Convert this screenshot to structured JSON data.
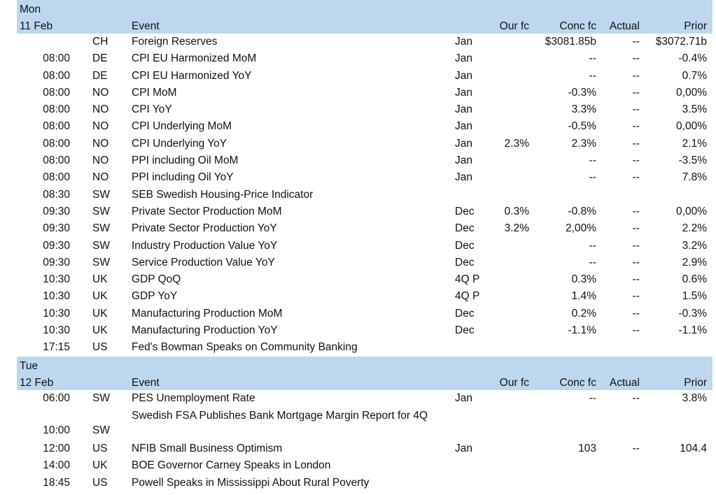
{
  "columns": {
    "event": "Event",
    "our_fc": "Our fc",
    "conc_fc": "Conc fc",
    "actual": "Actual",
    "prior": "Prior"
  },
  "days": [
    {
      "day": "Mon",
      "date": "11 Feb",
      "rows": [
        {
          "time": "",
          "country": "CH",
          "event": "Foreign Reserves",
          "period": "Jan",
          "our_fc": "",
          "conc_fc": "$3081.85b",
          "actual": "--",
          "prior": "$3072.71b"
        },
        {
          "time": "08:00",
          "country": "DE",
          "event": "CPI EU Harmonized MoM",
          "period": "Jan",
          "our_fc": "",
          "conc_fc": "--",
          "actual": "--",
          "prior": "-0.4%"
        },
        {
          "time": "08:00",
          "country": "DE",
          "event": "CPI EU Harmonized YoY",
          "period": "Jan",
          "our_fc": "",
          "conc_fc": "--",
          "actual": "--",
          "prior": "0.7%"
        },
        {
          "time": "08:00",
          "country": "NO",
          "event": "CPI MoM",
          "period": "Jan",
          "our_fc": "",
          "conc_fc": "-0.3%",
          "actual": "--",
          "prior": "0,00%"
        },
        {
          "time": "08:00",
          "country": "NO",
          "event": "CPI YoY",
          "period": "Jan",
          "our_fc": "",
          "conc_fc": "3.3%",
          "actual": "--",
          "prior": "3.5%"
        },
        {
          "time": "08:00",
          "country": "NO",
          "event": "CPI Underlying MoM",
          "period": "Jan",
          "our_fc": "",
          "conc_fc": "-0.5%",
          "actual": "--",
          "prior": "0,00%"
        },
        {
          "time": "08:00",
          "country": "NO",
          "event": "CPI Underlying YoY",
          "period": "Jan",
          "our_fc": "2.3%",
          "conc_fc": "2.3%",
          "actual": "--",
          "prior": "2.1%"
        },
        {
          "time": "08:00",
          "country": "NO",
          "event": "PPI including Oil MoM",
          "period": "Jan",
          "our_fc": "",
          "conc_fc": "--",
          "actual": "--",
          "prior": "-3.5%"
        },
        {
          "time": "08:00",
          "country": "NO",
          "event": "PPI including Oil YoY",
          "period": "Jan",
          "our_fc": "",
          "conc_fc": "--",
          "actual": "--",
          "prior": "7.8%"
        },
        {
          "time": "08:30",
          "country": "SW",
          "event": "SEB Swedish Housing-Price Indicator",
          "period": "",
          "our_fc": "",
          "conc_fc": "",
          "actual": "",
          "prior": ""
        },
        {
          "time": "09:30",
          "country": "SW",
          "event": "Private Sector Production MoM",
          "period": "Dec",
          "our_fc": "0.3%",
          "conc_fc": "-0.8%",
          "actual": "--",
          "prior": "0,00%"
        },
        {
          "time": "09:30",
          "country": "SW",
          "event": "Private Sector Production YoY",
          "period": "Dec",
          "our_fc": "3.2%",
          "conc_fc": "2,00%",
          "actual": "--",
          "prior": "2.2%"
        },
        {
          "time": "09:30",
          "country": "SW",
          "event": "Industry Production Value YoY",
          "period": "Dec",
          "our_fc": "",
          "conc_fc": "--",
          "actual": "--",
          "prior": "3.2%"
        },
        {
          "time": "09:30",
          "country": "SW",
          "event": "Service Production Value YoY",
          "period": "Dec",
          "our_fc": "",
          "conc_fc": "--",
          "actual": "--",
          "prior": "2.9%"
        },
        {
          "time": "10:30",
          "country": "UK",
          "event": "GDP QoQ",
          "period": "4Q  P",
          "our_fc": "",
          "conc_fc": "0.3%",
          "actual": "--",
          "prior": "0.6%"
        },
        {
          "time": "10:30",
          "country": "UK",
          "event": "GDP YoY",
          "period": "4Q  P",
          "our_fc": "",
          "conc_fc": "1.4%",
          "actual": "--",
          "prior": "1.5%"
        },
        {
          "time": "10:30",
          "country": "UK",
          "event": "Manufacturing Production MoM",
          "period": "Dec",
          "our_fc": "",
          "conc_fc": "0.2%",
          "actual": "--",
          "prior": "-0.3%"
        },
        {
          "time": "10:30",
          "country": "UK",
          "event": "Manufacturing Production YoY",
          "period": "Dec",
          "our_fc": "",
          "conc_fc": "-1.1%",
          "actual": "--",
          "prior": "-1.1%"
        },
        {
          "time": "17:15",
          "country": "US",
          "event": "Fed's Bowman Speaks on Community Banking",
          "period": "",
          "our_fc": "",
          "conc_fc": "",
          "actual": "",
          "prior": ""
        }
      ]
    },
    {
      "day": "Tue",
      "date": "12 Feb",
      "rows": [
        {
          "time": "06:00",
          "country": "SW",
          "event": "PES Unemployment Rate",
          "period": "Jan",
          "our_fc": "",
          "conc_fc": "--",
          "actual": "--",
          "prior": "3.8%"
        },
        {
          "time": "10:00",
          "country": "SW",
          "event": "Swedish FSA Publishes Bank Mortgage Margin Report for 4Q",
          "period": "",
          "our_fc": "",
          "conc_fc": "",
          "actual": "",
          "prior": "",
          "tall": true
        },
        {
          "time": "12:00",
          "country": "US",
          "event": "NFIB Small Business Optimism",
          "period": "Jan",
          "our_fc": "",
          "conc_fc": "103",
          "actual": "--",
          "prior": "104.4"
        },
        {
          "time": "14:00",
          "country": "UK",
          "event": "BOE Governor Carney Speaks in London",
          "period": "",
          "our_fc": "",
          "conc_fc": "",
          "actual": "",
          "prior": ""
        },
        {
          "time": "18:45",
          "country": "US",
          "event": "Powell Speaks in Mississippi About Rural Poverty",
          "period": "",
          "our_fc": "",
          "conc_fc": "",
          "actual": "",
          "prior": ""
        }
      ]
    }
  ]
}
